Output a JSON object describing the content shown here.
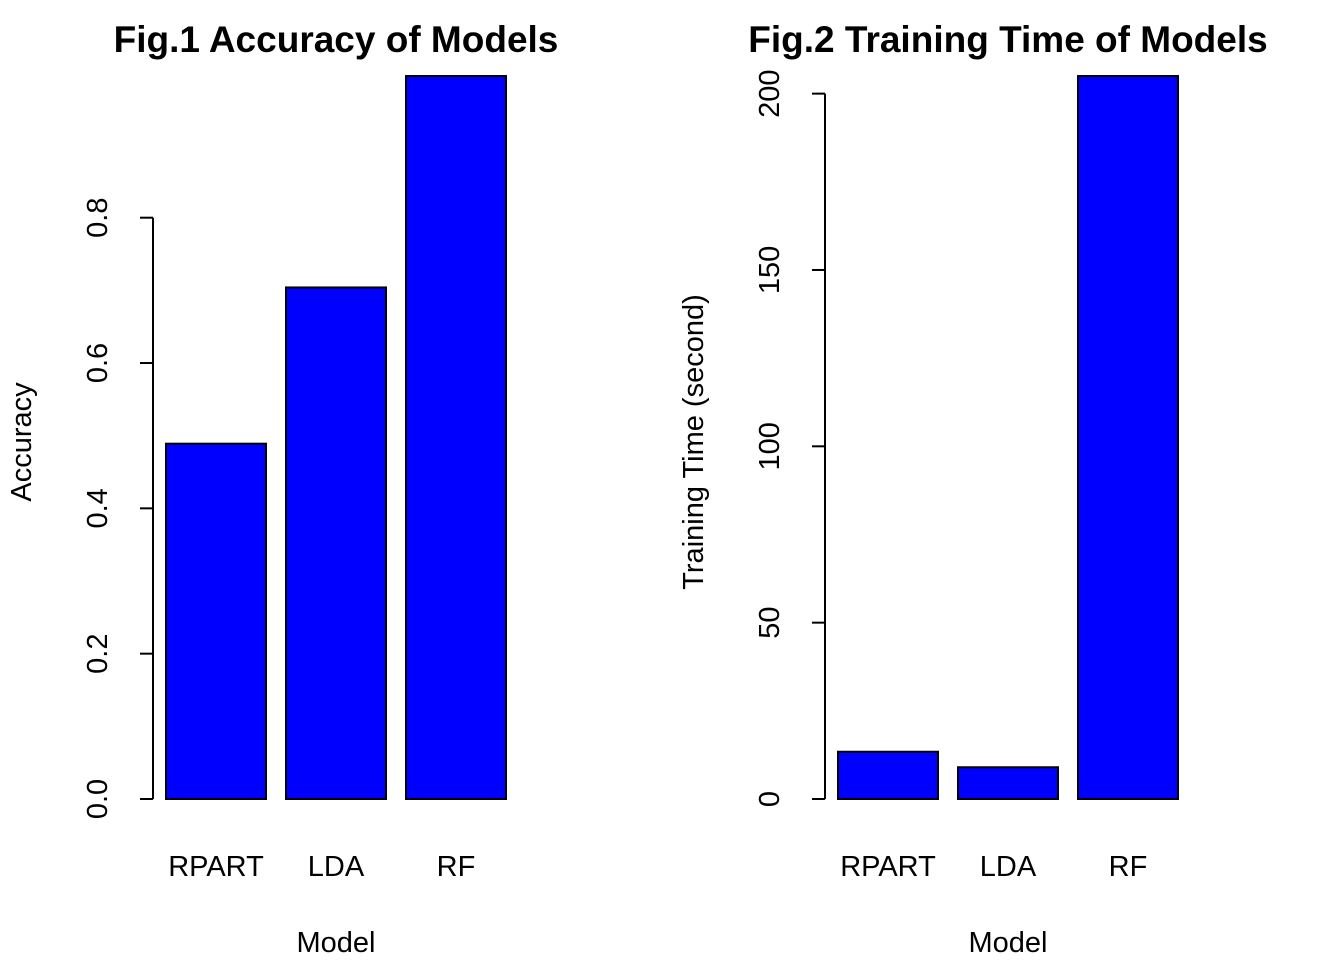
{
  "colors": {
    "bar": "#0000ff",
    "stroke": "#000000",
    "background": "#ffffff"
  },
  "chart_data": [
    {
      "type": "bar",
      "title": "Fig.1 Accuracy of Models",
      "xlabel": "Model",
      "ylabel": "Accuracy",
      "categories": [
        "RPART",
        "LDA",
        "RF"
      ],
      "values": [
        0.489,
        0.704,
        0.995
      ],
      "ylim": [
        0,
        0.995
      ],
      "yticks": [
        "0.0",
        "0.2",
        "0.4",
        "0.6",
        "0.8"
      ],
      "ytick_values": [
        0,
        0.2,
        0.4,
        0.6,
        0.8
      ],
      "grid": false,
      "legend": "none"
    },
    {
      "type": "bar",
      "title": "Fig.2 Training Time of Models",
      "xlabel": "Model",
      "ylabel": "Training Time (second)",
      "categories": [
        "RPART",
        "LDA",
        "RF"
      ],
      "values": [
        13.4,
        9.0,
        205.0
      ],
      "ylim": [
        0,
        205.0
      ],
      "yticks": [
        "0",
        "50",
        "100",
        "150",
        "200"
      ],
      "ytick_values": [
        0,
        50,
        100,
        150,
        200
      ],
      "grid": false,
      "legend": "none"
    }
  ]
}
